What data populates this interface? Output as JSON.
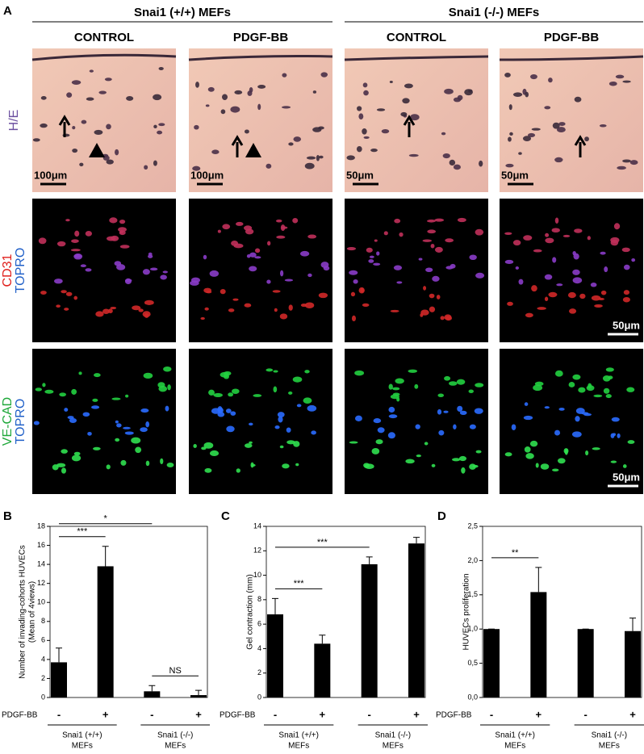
{
  "panel_a": {
    "letter": "A",
    "groups": [
      "Snai1 (+/+) MEFs",
      "Snai1 (-/-) MEFs"
    ],
    "columns": [
      "CONTROL",
      "PDGF-BB",
      "CONTROL",
      "PDGF-BB"
    ],
    "rows": [
      {
        "label": [
          "H/E"
        ],
        "colors": [
          "#6b4fa0"
        ],
        "scale_bars": [
          "100μm",
          "100μm",
          "50μm",
          "50μm"
        ]
      },
      {
        "label": [
          "CD31",
          "TOPRO"
        ],
        "colors": [
          "#e0201c",
          "#1f5fc8"
        ],
        "scale_bars": [
          null,
          null,
          null,
          "50μm"
        ]
      },
      {
        "label": [
          "VE-CAD",
          "TOPRO"
        ],
        "colors": [
          "#1fa83a",
          "#1f5fc8"
        ],
        "scale_bars": [
          null,
          null,
          null,
          "50μm"
        ]
      }
    ]
  },
  "chart_data": [
    {
      "type": "bar",
      "letter": "B",
      "ylabel": [
        "Number of invading-cohorts HUVECs",
        "(Mean of 4views)"
      ],
      "row_label": "PDGF-BB",
      "categories": [
        "-",
        "+",
        "-",
        "+"
      ],
      "values": [
        3.7,
        13.8,
        0.65,
        0.25
      ],
      "errors": [
        1.5,
        2.1,
        0.6,
        0.5
      ],
      "color": "#000000",
      "ylim": [
        0,
        18
      ],
      "yticks": [
        0,
        2,
        4,
        6,
        8,
        10,
        12,
        14,
        16,
        18
      ],
      "groups": [
        [
          "Snai1 (+/+)",
          "MEFs"
        ],
        [
          "Snai1 (-/-)",
          "MEFs"
        ]
      ],
      "brackets": [
        {
          "from": 0,
          "to": 1,
          "label": "***"
        },
        {
          "from": 0,
          "to": 2,
          "label": "*"
        },
        {
          "from": 2,
          "to": 3,
          "label": "NS"
        }
      ]
    },
    {
      "type": "bar",
      "letter": "C",
      "ylabel": [
        "Gel contraction (mm)"
      ],
      "row_label": "PDGF-BB",
      "categories": [
        "-",
        "+",
        "-",
        "+"
      ],
      "values": [
        6.8,
        4.4,
        10.9,
        12.6
      ],
      "errors": [
        1.3,
        0.7,
        0.6,
        0.5
      ],
      "color": "#000000",
      "ylim": [
        0,
        14
      ],
      "yticks": [
        0,
        2,
        4,
        6,
        8,
        10,
        12,
        14
      ],
      "groups": [
        [
          "Snai1 (+/+)",
          "MEFs"
        ],
        [
          "Snai1 (-/-)",
          "MEFs"
        ]
      ],
      "brackets": [
        {
          "from": 0,
          "to": 1,
          "label": "***"
        },
        {
          "from": 0,
          "to": 2,
          "label": "***"
        }
      ]
    },
    {
      "type": "bar",
      "letter": "D",
      "ylabel": [
        "HUVECs proliferation"
      ],
      "row_label": "PDGF-BB",
      "categories": [
        "-",
        "+",
        "-",
        "+"
      ],
      "values": [
        1,
        1.54,
        1,
        0.97
      ],
      "errors": [
        0,
        0.36,
        0,
        0.19
      ],
      "color": "#000000",
      "ylim": [
        0,
        2.5
      ],
      "yticks": [
        {
          "value": 0,
          "label": "0,0"
        },
        {
          "value": 0.5,
          "label": "0,5"
        },
        {
          "value": 1,
          "label": "1,0"
        },
        {
          "value": 1.5,
          "label": "1,5"
        },
        {
          "value": 2,
          "label": "2,0"
        },
        {
          "value": 2.5,
          "label": "2,5"
        }
      ],
      "groups": [
        [
          "Snai1 (+/+)",
          "MEFs"
        ],
        [
          "Snai1 (-/-)",
          "MEFs"
        ]
      ],
      "brackets": [
        {
          "from": 0,
          "to": 1,
          "label": "**"
        }
      ]
    }
  ]
}
